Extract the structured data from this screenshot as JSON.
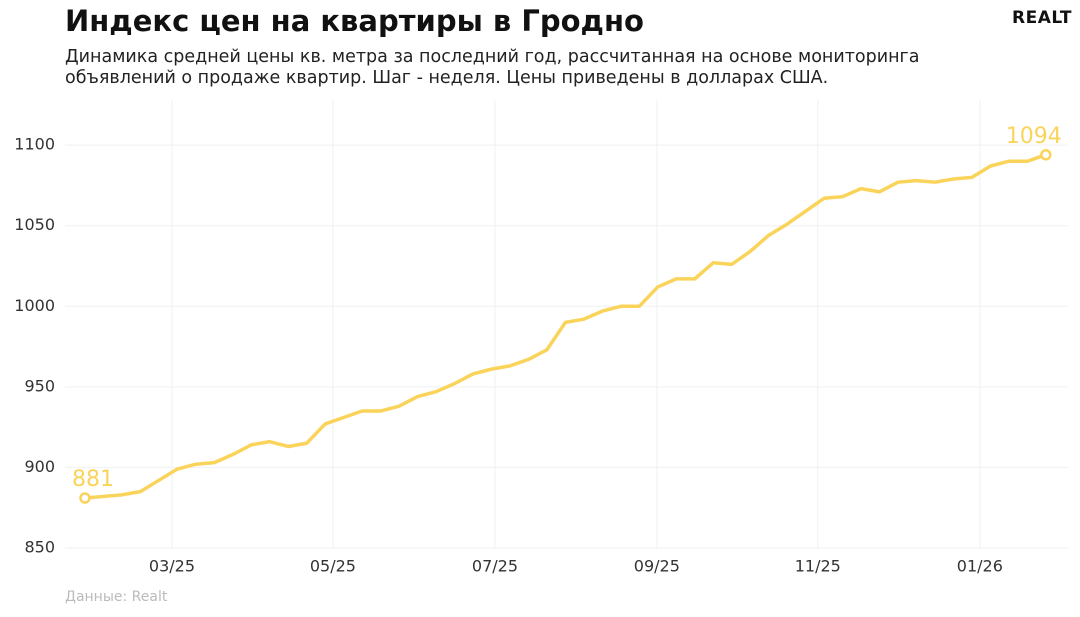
{
  "chart_data": {
    "type": "line",
    "title": "Индекс цен на квартиры в Гродно",
    "subtitle": "Динамика средней цены кв. метра за последний год, рассчитанная на основе мониторинга объявлений о продаже квартир. Шаг - неделя. Цены приведены в долларах США.",
    "logo": "REALT",
    "source": "Данные: Realt",
    "color": "#fad45a",
    "x": [
      0,
      1,
      2,
      3,
      4,
      5,
      6,
      7,
      8,
      9,
      10,
      11,
      12,
      13,
      14,
      15,
      16,
      17,
      18,
      19,
      20,
      21,
      22,
      23,
      24,
      25,
      26,
      27,
      28,
      29,
      30,
      31,
      32,
      33,
      34,
      35,
      36,
      37,
      38,
      39,
      40,
      41,
      42,
      43,
      44,
      45,
      46,
      47,
      48,
      49,
      50,
      51,
      52
    ],
    "values": [
      881,
      882,
      883,
      885,
      892,
      899,
      902,
      903,
      908,
      914,
      916,
      913,
      915,
      927,
      931,
      935,
      935,
      938,
      944,
      947,
      952,
      958,
      961,
      963,
      967,
      973,
      990,
      992,
      997,
      1000,
      1000,
      1012,
      1017,
      1017,
      1027,
      1026,
      1034,
      1044,
      1051,
      1059,
      1067,
      1068,
      1073,
      1071,
      1077,
      1078,
      1077,
      1079,
      1080,
      1087,
      1090,
      1090,
      1094
    ],
    "xlim": [
      -1.08,
      53.2
    ],
    "xticks": [
      {
        "value": 4.71,
        "label": "03/25"
      },
      {
        "value": 13.42,
        "label": "05/25"
      },
      {
        "value": 22.19,
        "label": "07/25"
      },
      {
        "value": 30.95,
        "label": "09/25"
      },
      {
        "value": 39.66,
        "label": "11/25"
      },
      {
        "value": 48.43,
        "label": "01/26"
      }
    ],
    "ylim": [
      850,
      1128
    ],
    "yticks": [
      850,
      900,
      950,
      1000,
      1050,
      1100
    ],
    "grid": true
  }
}
